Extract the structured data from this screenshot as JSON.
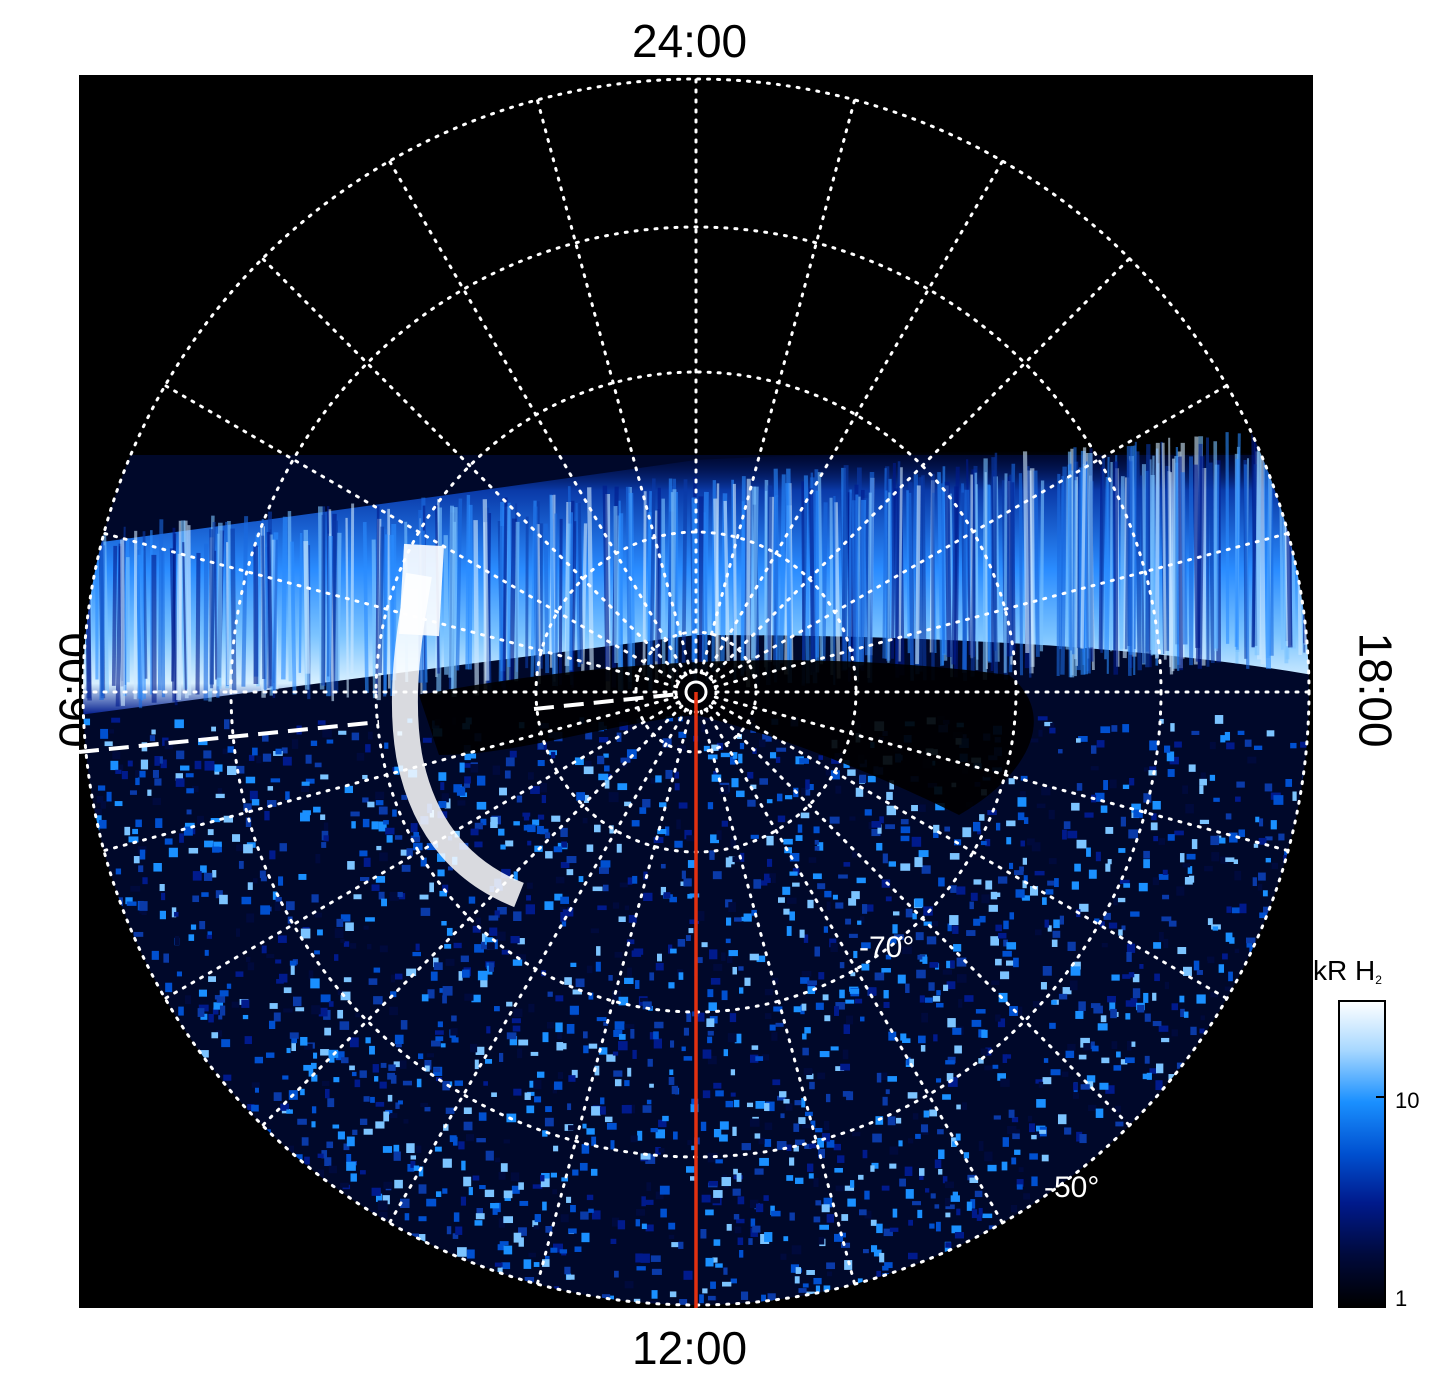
{
  "local_time_labels": {
    "top": "24:00",
    "bottom": "12:00",
    "left": "06:00",
    "right": "18:00"
  },
  "latitude_labels": {
    "inner": "-70°",
    "outer": "-50°"
  },
  "colorbar": {
    "title": "kR H",
    "title_subscript": "2",
    "tick_labels": [
      "1",
      "10"
    ],
    "colors": [
      "#000000",
      "#000a3c",
      "#001a8c",
      "#0050d0",
      "#1a90ff",
      "#a8d8ff",
      "#ffffff"
    ]
  },
  "marker_colors": {
    "meridian": "#e23010",
    "grid": "#ffffff"
  }
}
